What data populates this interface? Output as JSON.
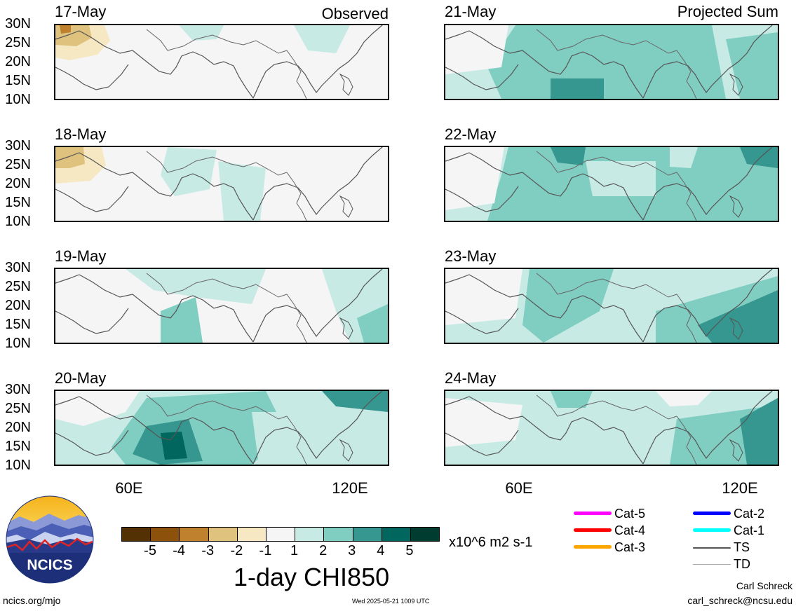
{
  "left_header": {
    "tag": "Observed"
  },
  "right_header": {
    "tag": "Projected Sum"
  },
  "panels": [
    {
      "date": "17-May",
      "side": "observed",
      "intensity": 0
    },
    {
      "date": "18-May",
      "side": "observed",
      "intensity": 1
    },
    {
      "date": "19-May",
      "side": "observed",
      "intensity": 1
    },
    {
      "date": "20-May",
      "side": "observed",
      "intensity": 3
    },
    {
      "date": "21-May",
      "side": "projected",
      "intensity": 2
    },
    {
      "date": "22-May",
      "side": "projected",
      "intensity": 3
    },
    {
      "date": "23-May",
      "side": "projected",
      "intensity": 2
    },
    {
      "date": "24-May",
      "side": "projected",
      "intensity": 2
    }
  ],
  "lat_labels": [
    "30N",
    "25N",
    "20N",
    "15N",
    "10N"
  ],
  "lon_labels": [
    "60E",
    "120E"
  ],
  "colorbar": {
    "colors": [
      "#543005",
      "#8c510a",
      "#bf812d",
      "#dfc27d",
      "#f6e8c3",
      "#f5f5f5",
      "#c7eae5",
      "#80cdc1",
      "#35978f",
      "#01665e",
      "#003c30"
    ],
    "ticks": [
      "-5",
      "-4",
      "-3",
      "-2",
      "-1",
      "1",
      "2",
      "3",
      "4",
      "5"
    ],
    "units": "x10^6 m2 s-1"
  },
  "title": "1-day CHI850",
  "legend": [
    {
      "label": "Cat-5",
      "color": "#ff00ff"
    },
    {
      "label": "Cat-4",
      "color": "#ff0000"
    },
    {
      "label": "Cat-3",
      "color": "#ffa500"
    },
    {
      "label": "Cat-2",
      "color": "#0000ff"
    },
    {
      "label": "Cat-1",
      "color": "#00ffff"
    },
    {
      "label": "TS",
      "color": "#555555"
    },
    {
      "label": "TD",
      "color": "#aaaaaa"
    }
  ],
  "logo": {
    "text": "NCICS"
  },
  "footer": {
    "url": "ncics.org/mjo",
    "timestamp": "Wed 2025-05-21 1009 UTC",
    "author": "Carl Schreck",
    "email": "carl_schreck@ncsu.edu"
  }
}
